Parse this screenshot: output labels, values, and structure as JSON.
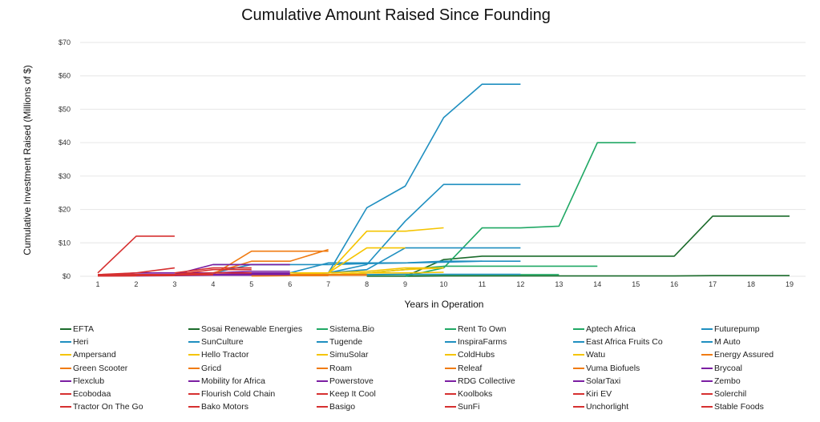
{
  "chart_data": {
    "type": "line",
    "title": "Cumulative Amount Raised Since Founding",
    "xlabel": "Years in Operation",
    "ylabel": "Cumulative Investment Raised (Millions of $)",
    "xlim": [
      1,
      19
    ],
    "ylim": [
      0,
      70
    ],
    "x_ticks": [
      "1",
      "2",
      "3",
      "4",
      "5",
      "6",
      "7",
      "8",
      "9",
      "10",
      "11",
      "12",
      "13",
      "14",
      "15",
      "16",
      "17",
      "18",
      "19"
    ],
    "y_ticks": [
      0,
      10,
      20,
      30,
      40,
      50,
      60,
      70
    ],
    "y_tick_labels": [
      "$0",
      "$10",
      "$20",
      "$30",
      "$40",
      "$50",
      "$60",
      "$70"
    ],
    "grid": "horizontal",
    "legend_position": "bottom",
    "series": [
      {
        "name": "EFTA",
        "color": "#1b6b2b",
        "years": [
          9,
          10,
          11,
          12,
          13,
          14,
          15,
          16,
          17,
          18,
          19
        ],
        "values": [
          0,
          5,
          6,
          6,
          6,
          6,
          6,
          6,
          18,
          18,
          18
        ]
      },
      {
        "name": "Sosai Renewable Energies",
        "color": "#1b6b2b",
        "years": [
          8,
          9,
          10,
          11,
          12,
          13,
          14,
          15,
          16,
          17,
          18,
          19
        ],
        "values": [
          0,
          0,
          0.1,
          0.1,
          0.1,
          0.1,
          0.1,
          0.1,
          0.1,
          0.2,
          0.2,
          0.2
        ]
      },
      {
        "name": "Sistema.Bio",
        "color": "#20a865",
        "years": [
          9,
          10,
          11,
          12,
          13,
          14,
          15
        ],
        "values": [
          0,
          2.5,
          14.5,
          14.5,
          15,
          40,
          40
        ]
      },
      {
        "name": "Rent To Own",
        "color": "#20a865",
        "years": [
          7,
          8,
          9,
          10,
          11,
          12,
          13,
          14
        ],
        "values": [
          0.5,
          1,
          2,
          3,
          3,
          3,
          3,
          3
        ]
      },
      {
        "name": "Aptech Africa",
        "color": "#20a865",
        "years": [
          6,
          7,
          8,
          9,
          10,
          11,
          12,
          13
        ],
        "values": [
          0.2,
          0.3,
          0.4,
          0.5,
          0.5,
          0.5,
          0.5,
          0.5
        ]
      },
      {
        "name": "Futurepump",
        "color": "#1f8fc0",
        "years": [
          1,
          2,
          3,
          4,
          5,
          6,
          7,
          8,
          9,
          10,
          11,
          12
        ],
        "values": [
          0.1,
          0.2,
          0.3,
          0.5,
          0.5,
          0.5,
          0.5,
          0.5,
          0.6,
          0.6,
          0.6,
          0.6
        ]
      },
      {
        "name": "Heri",
        "color": "#1f8fc0",
        "years": [
          7,
          8,
          9,
          10,
          11,
          12
        ],
        "values": [
          1,
          20.5,
          27,
          47.5,
          57.5,
          57.5
        ]
      },
      {
        "name": "SunCulture",
        "color": "#1f8fc0",
        "years": [
          6,
          7,
          8,
          9,
          10,
          11,
          12
        ],
        "values": [
          0.5,
          1,
          3.5,
          16.5,
          27.5,
          27.5,
          27.5
        ]
      },
      {
        "name": "Tugende",
        "color": "#1f8fc0",
        "years": [
          7,
          8,
          9,
          10,
          11,
          12
        ],
        "values": [
          1,
          2,
          8.5,
          8.5,
          8.5,
          8.5
        ]
      },
      {
        "name": "InspiraFarms",
        "color": "#1f8fc0",
        "years": [
          3,
          4,
          5,
          6,
          7,
          8,
          9,
          10,
          11
        ],
        "values": [
          0.5,
          1,
          3.5,
          3.5,
          3.5,
          3.8,
          4,
          4.2,
          4.5
        ]
      },
      {
        "name": "East Africa Fruits Co",
        "color": "#1f8fc0",
        "years": [
          5,
          6,
          7,
          8,
          9,
          10,
          11,
          12
        ],
        "values": [
          1,
          1,
          4,
          4,
          4,
          4.5,
          4.5,
          4.5
        ]
      },
      {
        "name": "M Auto",
        "color": "#1f8fc0",
        "years": [
          4,
          5,
          6
        ],
        "values": [
          3.5,
          3.5,
          3.5
        ]
      },
      {
        "name": "Ampersand",
        "color": "#f5c400",
        "years": [
          7,
          8,
          9,
          10
        ],
        "values": [
          1,
          13.5,
          13.5,
          14.5
        ]
      },
      {
        "name": "Hello Tractor",
        "color": "#f5c400",
        "years": [
          6,
          7,
          8,
          9
        ],
        "values": [
          0.5,
          1,
          8.5,
          8.5
        ]
      },
      {
        "name": "SimuSolar",
        "color": "#f5c400",
        "years": [
          3,
          4,
          5,
          6,
          7,
          8,
          9,
          10
        ],
        "values": [
          1,
          1,
          1,
          1,
          1,
          1.5,
          2.5,
          2.5
        ]
      },
      {
        "name": "ColdHubs",
        "color": "#f5c400",
        "years": [
          6,
          7,
          8,
          9,
          10
        ],
        "values": [
          0.3,
          0.5,
          1,
          1,
          1.2
        ]
      },
      {
        "name": "Watu",
        "color": "#f5c400",
        "years": [
          7,
          8,
          9,
          10
        ],
        "values": [
          0.5,
          1,
          2,
          2.5
        ]
      },
      {
        "name": "Energy Assured",
        "color": "#f07b12",
        "years": [
          4,
          5,
          6,
          7
        ],
        "values": [
          1,
          4.5,
          4.5,
          8
        ]
      },
      {
        "name": "Green Scooter",
        "color": "#f07b12",
        "years": [
          4,
          5,
          6,
          7
        ],
        "values": [
          0.5,
          7.5,
          7.5,
          7.5
        ]
      },
      {
        "name": "Gricd",
        "color": "#f07b12",
        "years": [
          5,
          6,
          7,
          8
        ],
        "values": [
          0.1,
          0.2,
          0.3,
          0.3
        ]
      },
      {
        "name": "Roam",
        "color": "#f07b12",
        "years": [
          6,
          7,
          8
        ],
        "values": [
          0.5,
          0.5,
          0.5
        ]
      },
      {
        "name": "Releaf",
        "color": "#f07b12",
        "years": [
          4,
          5,
          6,
          7
        ],
        "values": [
          0.3,
          0.5,
          0.5,
          0.5
        ]
      },
      {
        "name": "Vuma Biofuels",
        "color": "#f07b12",
        "years": [
          5,
          6,
          7
        ],
        "values": [
          0.1,
          0.2,
          0.2
        ]
      },
      {
        "name": "Brycoal",
        "color": "#7b1fa2",
        "years": [
          1,
          2,
          3,
          4,
          5,
          6
        ],
        "values": [
          0.3,
          0.5,
          0.5,
          3.5,
          3.5,
          3.5
        ]
      },
      {
        "name": "Flexclub",
        "color": "#7b1fa2",
        "years": [
          2,
          3,
          4,
          5,
          6
        ],
        "values": [
          1,
          1,
          1,
          1.5,
          1.5
        ]
      },
      {
        "name": "Mobility for Africa",
        "color": "#7b1fa2",
        "years": [
          1,
          2,
          3,
          4,
          5,
          6
        ],
        "values": [
          0.3,
          1,
          1,
          1,
          1,
          1
        ]
      },
      {
        "name": "Powerstove",
        "color": "#7b1fa2",
        "years": [
          3,
          4,
          5,
          6
        ],
        "values": [
          0.5,
          0.5,
          0.8,
          0.8
        ]
      },
      {
        "name": "RDG Collective",
        "color": "#7b1fa2",
        "years": [
          2,
          3,
          4,
          5
        ],
        "values": [
          0.2,
          0.3,
          0.4,
          0.5
        ]
      },
      {
        "name": "SolarTaxi",
        "color": "#7b1fa2",
        "years": [
          1,
          2,
          3,
          4,
          5,
          6
        ],
        "values": [
          0.1,
          0.2,
          0.4,
          0.5,
          0.5,
          0.5
        ]
      },
      {
        "name": "Zembo",
        "color": "#7b1fa2",
        "years": [
          2,
          3,
          4,
          5
        ],
        "values": [
          0.1,
          0.2,
          0.3,
          0.3
        ]
      },
      {
        "name": "Ecobodaa",
        "color": "#d63030",
        "years": [
          1,
          2,
          3
        ],
        "values": [
          0.5,
          1,
          2.5
        ]
      },
      {
        "name": "Flourish Cold Chain",
        "color": "#d63030",
        "years": [
          3,
          4,
          5
        ],
        "values": [
          0.5,
          2,
          2
        ]
      },
      {
        "name": "Keep It Cool",
        "color": "#d63030",
        "years": [
          1,
          2,
          3,
          4
        ],
        "values": [
          0.2,
          0.3,
          0.5,
          0.5
        ]
      },
      {
        "name": "Koolboks",
        "color": "#d63030",
        "years": [
          3,
          4,
          5
        ],
        "values": [
          1,
          2.5,
          2.5
        ]
      },
      {
        "name": "Kiri EV",
        "color": "#d63030",
        "years": [
          1,
          2,
          3
        ],
        "values": [
          0.1,
          0.2,
          0.2
        ]
      },
      {
        "name": "Solerchil",
        "color": "#d63030",
        "years": [
          1,
          2,
          3,
          4,
          5
        ],
        "values": [
          0.2,
          0.3,
          0.5,
          1,
          1
        ]
      },
      {
        "name": "Tractor On The Go",
        "color": "#d63030",
        "years": [
          1,
          2,
          3,
          4
        ],
        "values": [
          0.2,
          0.5,
          0.5,
          0.5
        ]
      },
      {
        "name": "Bako Motors",
        "color": "#d63030",
        "years": [
          2,
          3,
          4
        ],
        "values": [
          0.3,
          0.3,
          0.5
        ]
      },
      {
        "name": "Basigo",
        "color": "#d63030",
        "years": [
          1,
          2,
          3
        ],
        "values": [
          0.1,
          0.5,
          0.5
        ]
      },
      {
        "name": "SunFi",
        "color": "#d63030",
        "years": [
          1,
          2,
          3
        ],
        "values": [
          1,
          12,
          12
        ]
      },
      {
        "name": "Unchorlight",
        "color": "#d63030",
        "years": [
          1,
          2
        ],
        "values": [
          0.1,
          0.1
        ]
      },
      {
        "name": "Stable Foods",
        "color": "#d63030",
        "years": [
          1,
          2,
          3,
          4
        ],
        "values": [
          0.5,
          0.5,
          0.5,
          0.5
        ]
      }
    ]
  }
}
